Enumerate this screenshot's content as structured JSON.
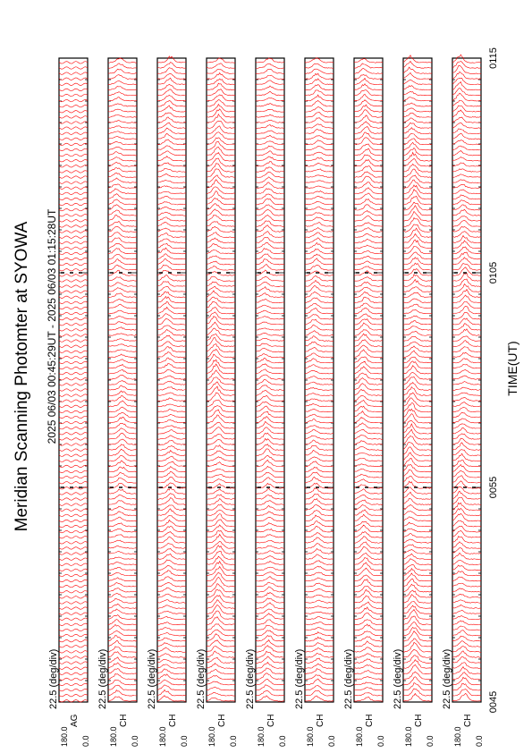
{
  "chart_data": {
    "type": "line",
    "title": "Meridian Scanning Photomter at SYOWA",
    "subtitle": "2025 06/03 00:45:29UT - 2025 06/03 01:15:28UT",
    "xlabel": "TIME(UT)",
    "x_ticks": [
      "0045",
      "0055",
      "0105",
      "0115"
    ],
    "xlim": [
      "0045",
      "0115"
    ],
    "panel_scale": "22.5 (deg/div)",
    "y_ticks": [
      "180.0",
      "0.0"
    ],
    "ylim": [
      0,
      180
    ],
    "line_color": "#ff0000",
    "panels": [
      {
        "channel": "AG",
        "trace_count": 118,
        "peak_deg": 90,
        "activity": 0.0
      },
      {
        "channel": "CH",
        "trace_count": 118,
        "peak_deg": 110,
        "activity": 0.55
      },
      {
        "channel": "CH",
        "trace_count": 118,
        "peak_deg": 112,
        "activity": 0.6
      },
      {
        "channel": "CH",
        "trace_count": 118,
        "peak_deg": 115,
        "activity": 0.85
      },
      {
        "channel": "CH",
        "trace_count": 118,
        "peak_deg": 108,
        "activity": 0.6
      },
      {
        "channel": "CH",
        "trace_count": 118,
        "peak_deg": 110,
        "activity": 0.55
      },
      {
        "channel": "CH",
        "trace_count": 118,
        "peak_deg": 112,
        "activity": 0.7
      },
      {
        "channel": "CH",
        "trace_count": 118,
        "peak_deg": 120,
        "activity": 0.9
      },
      {
        "channel": "CH",
        "trace_count": 118,
        "peak_deg": 115,
        "activity": 0.75
      }
    ]
  }
}
